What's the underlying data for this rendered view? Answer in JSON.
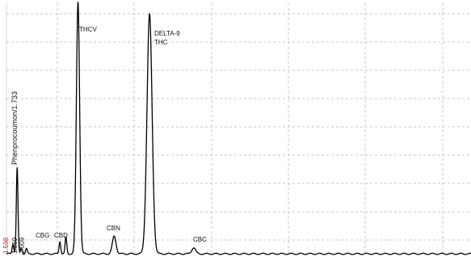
{
  "chart_data": {
    "type": "line",
    "title": "",
    "xlabel": "",
    "ylabel": "",
    "xlim": [
      0,
      100
    ],
    "ylim": [
      0,
      100
    ],
    "grid": true,
    "peaks": [
      {
        "name": "Phenprocoumon",
        "rt_label": "1.733",
        "x": 2.3,
        "height": 34
      },
      {
        "name": "1.598",
        "x": 1.4,
        "height": 4
      },
      {
        "name": "1.869",
        "x": 3.2,
        "height": 2.5
      },
      {
        "name": "2.009",
        "x": 4.3,
        "height": 2
      },
      {
        "name": "CBG",
        "x": 11.5,
        "height": 5
      },
      {
        "name": "CBD",
        "x": 12.8,
        "height": 6.5
      },
      {
        "name": "THCV",
        "x": 15.4,
        "height": 100
      },
      {
        "name": "CBN",
        "x": 23.2,
        "height": 7
      },
      {
        "name": "DELTA-9 THC",
        "x": 30.8,
        "height": 95
      },
      {
        "name": "CBC",
        "x": 40.3,
        "height": 2.5
      }
    ]
  },
  "labels": {
    "phenprocoumon": "Phenprocoumon/1.733",
    "rt_1598": "1.598",
    "rt_1869": "1.869",
    "rt_2009": "2.009",
    "cbg": "CBG",
    "cbd": "CBD",
    "thcv": "THCV",
    "cbn": "CBN",
    "delta9_line1": "DELTA-9",
    "delta9_line2": "THC",
    "cbc": "CBC"
  },
  "colors": {
    "trace": "#000000",
    "grid": "#c4c4c4",
    "red_label": "#cc2222"
  }
}
